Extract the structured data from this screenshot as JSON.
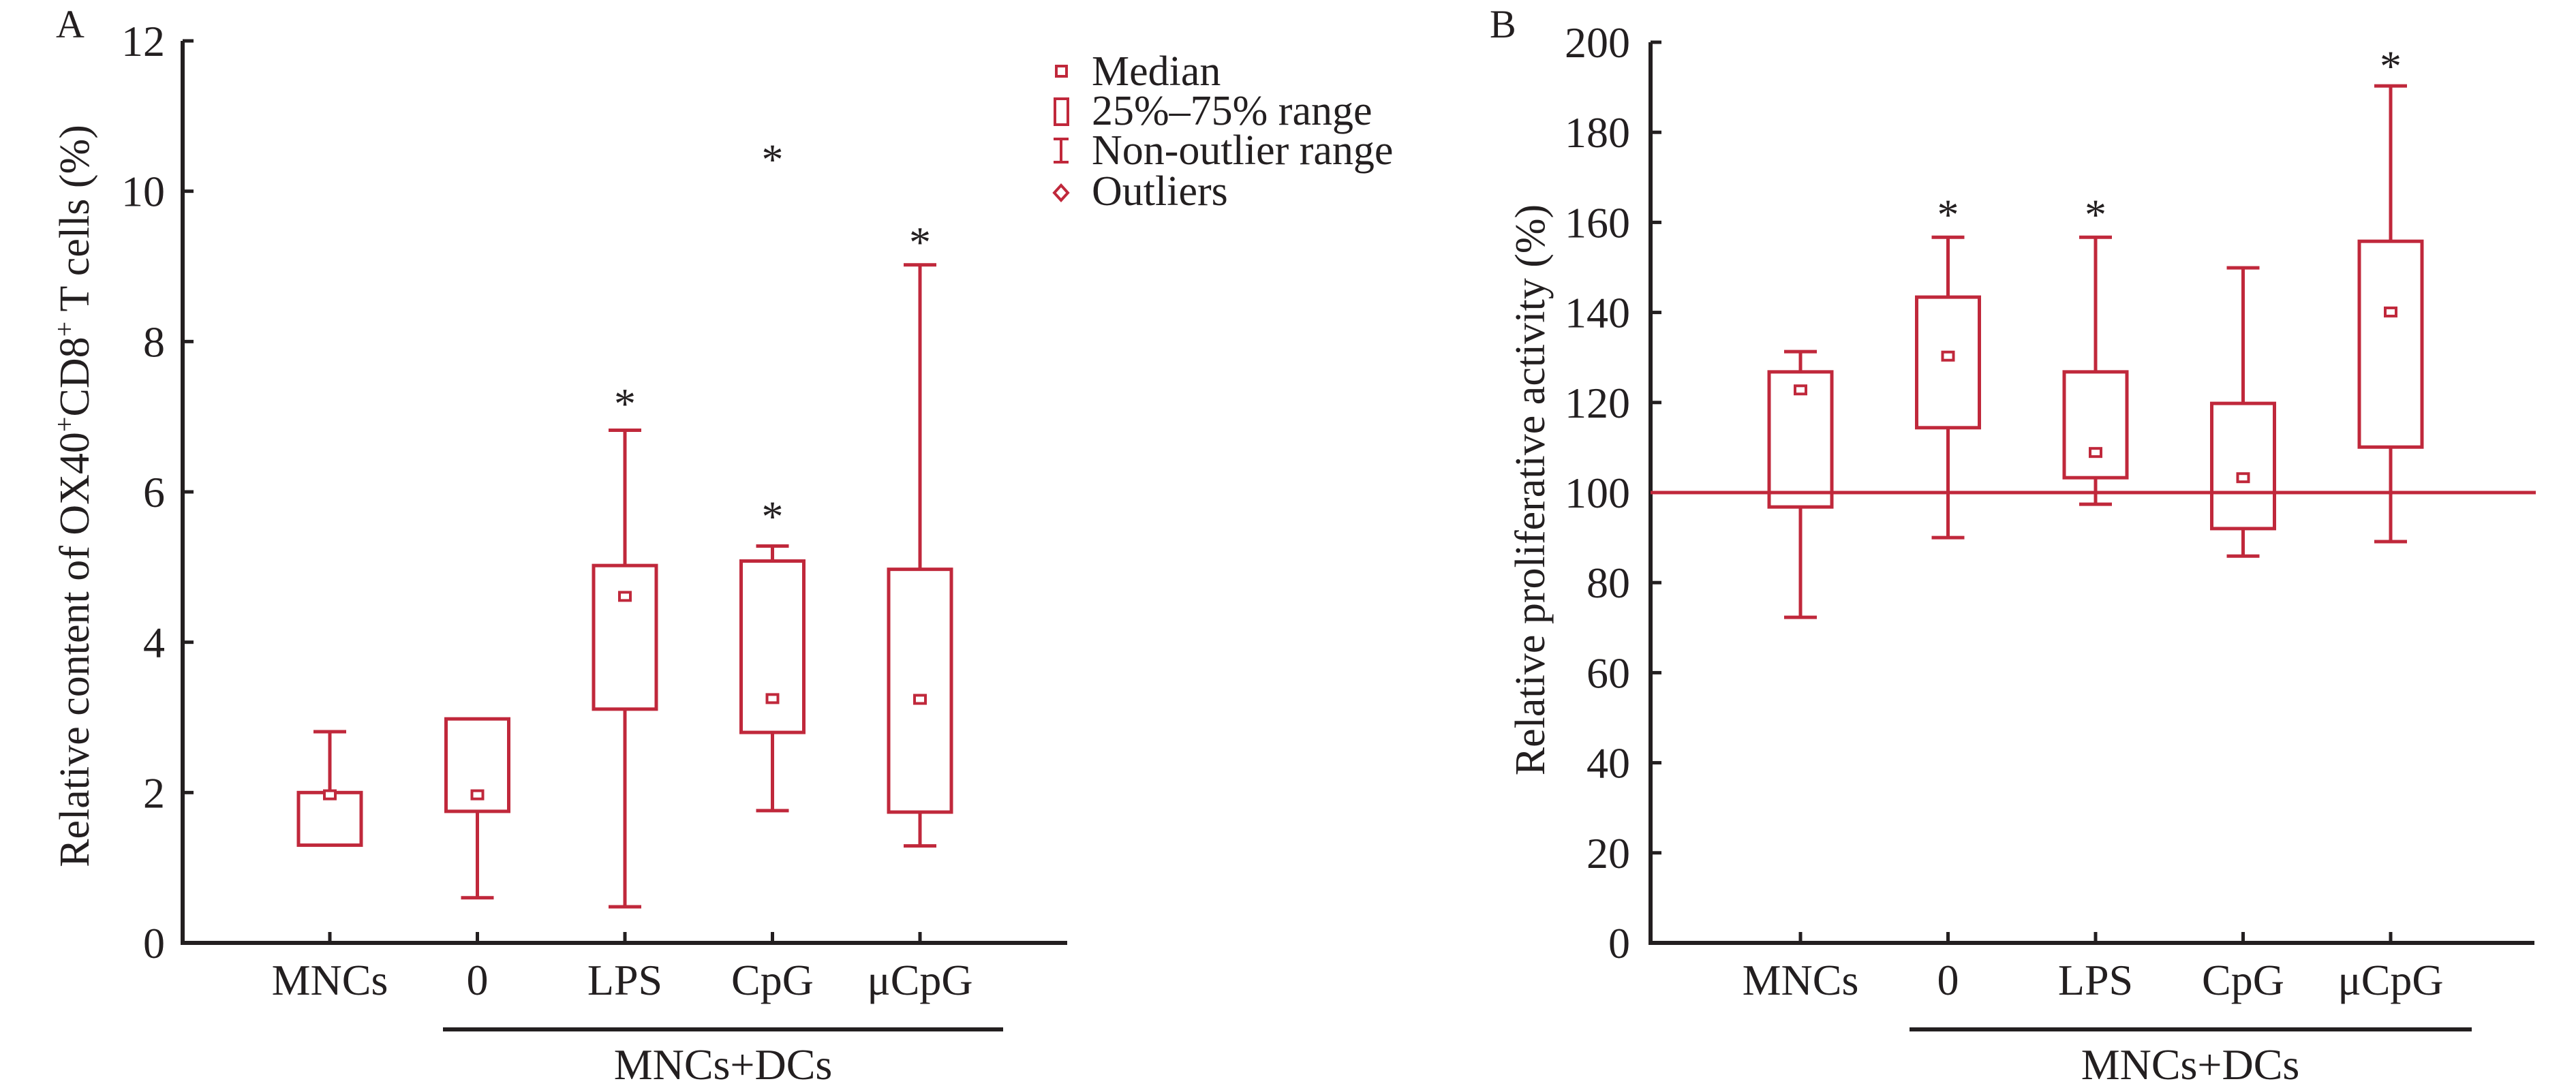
{
  "colors": {
    "box": "#c0283b",
    "axis": "#231f20",
    "reference_line": "#c0283b"
  },
  "legend": {
    "items": [
      {
        "label": "Median",
        "icon": "small-square-icon"
      },
      {
        "label": "25%–75% range",
        "icon": "box-icon"
      },
      {
        "label": "Non-outlier range",
        "icon": "whisker-icon"
      },
      {
        "label": "Outliers",
        "icon": "diamond-icon"
      }
    ]
  },
  "chart_data": [
    {
      "panel": "A",
      "type": "box",
      "ylabel_parts": [
        "Relative content of OX40",
        "+",
        "CD8",
        "+",
        " T cells (%)"
      ],
      "ylabel": "Relative content of OX40+CD8+ T cells (%)",
      "ylim": [
        0,
        12
      ],
      "yticks": [
        0,
        2,
        4,
        6,
        8,
        10,
        12
      ],
      "categories": [
        "MNCs",
        "0",
        "LPS",
        "CpG",
        "μCpG"
      ],
      "group_label": "MNCs+DCs",
      "group_members": [
        "0",
        "LPS",
        "CpG",
        "μCpG"
      ],
      "series": [
        {
          "name": "MNCs",
          "whisker_low": 1.3,
          "q1": 1.3,
          "median": 1.97,
          "q3": 2.0,
          "whisker_high": 2.81,
          "marks": []
        },
        {
          "name": "0",
          "whisker_low": 0.6,
          "q1": 1.75,
          "median": 1.97,
          "q3": 2.98,
          "whisker_high": 2.98,
          "marks": []
        },
        {
          "name": "LPS",
          "whisker_low": 0.48,
          "q1": 3.11,
          "median": 4.61,
          "q3": 5.02,
          "whisker_high": 6.82,
          "marks": [
            {
              "symbol": "*",
              "value": 7.25
            }
          ]
        },
        {
          "name": "CpG",
          "whisker_low": 1.76,
          "q1": 2.8,
          "median": 3.25,
          "q3": 5.08,
          "whisker_high": 5.28,
          "marks": [
            {
              "symbol": "*",
              "value": 5.75
            },
            {
              "symbol": "*",
              "value": 10.5
            }
          ]
        },
        {
          "name": "μCpG",
          "whisker_low": 1.29,
          "q1": 1.74,
          "median": 3.24,
          "q3": 4.97,
          "whisker_high": 9.02,
          "marks": [
            {
              "symbol": "*",
              "value": 9.4
            }
          ]
        }
      ]
    },
    {
      "panel": "B",
      "type": "box",
      "ylabel": "Relative proliferative activity (%)",
      "ylim": [
        0,
        200
      ],
      "yticks": [
        0,
        20,
        40,
        60,
        80,
        100,
        120,
        140,
        160,
        180,
        200
      ],
      "reference_line": 100,
      "categories": [
        "MNCs",
        "0",
        "LPS",
        "CpG",
        "μCpG"
      ],
      "group_label": "MNCs+DCs",
      "group_members": [
        "0",
        "LPS",
        "CpG",
        "μCpG"
      ],
      "series": [
        {
          "name": "MNCs",
          "whisker_low": 72.3,
          "q1": 96.8,
          "median": 122.8,
          "q3": 126.8,
          "whisker_high": 131.3,
          "marks": []
        },
        {
          "name": "0",
          "whisker_low": 90.0,
          "q1": 114.4,
          "median": 130.3,
          "q3": 143.4,
          "whisker_high": 156.7,
          "marks": [
            {
              "symbol": "*",
              "value": 163
            }
          ]
        },
        {
          "name": "LPS",
          "whisker_low": 97.4,
          "q1": 103.3,
          "median": 108.9,
          "q3": 126.8,
          "whisker_high": 156.7,
          "marks": [
            {
              "symbol": "*",
              "value": 163
            }
          ]
        },
        {
          "name": "CpG",
          "whisker_low": 85.9,
          "q1": 92.0,
          "median": 103.3,
          "q3": 119.8,
          "whisker_high": 149.9,
          "marks": []
        },
        {
          "name": "μCpG",
          "whisker_low": 89.1,
          "q1": 110.1,
          "median": 140.1,
          "q3": 155.8,
          "whisker_high": 190.3,
          "marks": [
            {
              "symbol": "*",
              "value": 196
            }
          ]
        }
      ]
    }
  ]
}
